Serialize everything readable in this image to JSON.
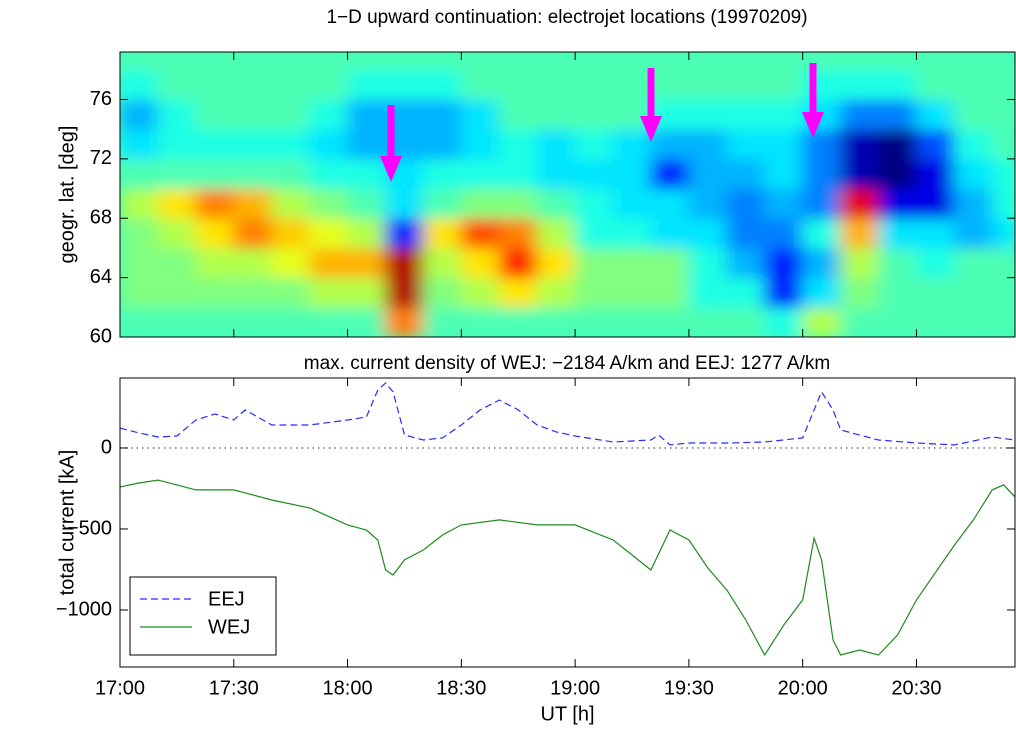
{
  "chart_data": [
    {
      "type": "heatmap",
      "title": "1−D upward continuation: electrojet locations (19970209)",
      "ylabel": "geogr. lat. [deg]",
      "colormap": "jet",
      "zlim": [
        -1,
        1
      ],
      "xlim": [
        17,
        20.933
      ],
      "xticks": [
        17,
        17.5,
        18,
        18.5,
        19,
        19.5,
        20,
        20.5
      ],
      "ylim": [
        60,
        79.2
      ],
      "yticks": [
        60,
        64,
        68,
        72,
        76
      ],
      "x_edges": [
        17,
        17.167,
        17.333,
        17.5,
        17.667,
        17.833,
        18,
        18.167,
        18.333,
        18.5,
        18.667,
        18.833,
        19,
        19.167,
        19.333,
        19.5,
        19.667,
        19.833,
        20,
        20.167,
        20.333,
        20.5,
        20.667,
        20.833,
        20.933
      ],
      "y_edges": [
        60,
        62,
        64,
        66,
        68,
        70,
        72,
        74,
        76,
        78,
        79.2
      ],
      "z": [
        [
          -0.1,
          -0.1,
          -0.1,
          -0.1,
          -0.1,
          -0.1,
          -0.1,
          0.5,
          -0.1,
          -0.1,
          -0.1,
          -0.1,
          -0.1,
          -0.1,
          -0.1,
          -0.1,
          -0.1,
          -0.2,
          0.1,
          -0.1,
          -0.1,
          -0.1,
          -0.1,
          -0.1
        ],
        [
          0,
          0,
          0,
          0,
          0,
          0.1,
          0.1,
          0.9,
          0,
          0.1,
          0.3,
          0.1,
          0,
          0,
          0,
          -0.2,
          -0.2,
          -0.7,
          -0.3,
          0,
          -0.1,
          -0.1,
          -0.1,
          -0.1
        ],
        [
          0,
          0,
          0.1,
          0.1,
          0.2,
          0.4,
          0.4,
          0.9,
          0.1,
          0.3,
          0.7,
          0.3,
          0,
          0,
          0,
          -0.2,
          -0.4,
          -0.7,
          -0.4,
          0.1,
          -0.1,
          -0.2,
          -0.1,
          -0.1
        ],
        [
          0,
          0.1,
          0.3,
          0.5,
          0.35,
          0.2,
          0.1,
          -0.7,
          0.3,
          0.6,
          0.5,
          0.1,
          -0.2,
          -0.2,
          -0.3,
          -0.3,
          -0.5,
          -0.5,
          -0.2,
          0.4,
          -0.3,
          -0.3,
          -0.4,
          -0.3
        ],
        [
          0.1,
          0.3,
          0.5,
          0.4,
          0.1,
          0,
          -0.1,
          -0.3,
          -0.1,
          0,
          0,
          -0.1,
          -0.2,
          -0.3,
          -0.3,
          -0.4,
          -0.5,
          -0.4,
          -0.5,
          0.8,
          -0.8,
          -0.8,
          -0.4,
          -0.2
        ],
        [
          -0.1,
          -0.1,
          -0.1,
          -0.1,
          -0.1,
          -0.2,
          -0.2,
          -0.3,
          -0.2,
          -0.2,
          -0.2,
          -0.3,
          -0.3,
          -0.3,
          -0.7,
          -0.4,
          -0.4,
          -0.3,
          -0.5,
          -0.9,
          -1,
          -0.8,
          -0.3,
          -0.2
        ],
        [
          -0.3,
          -0.2,
          -0.2,
          -0.2,
          -0.2,
          -0.3,
          -0.4,
          -0.4,
          -0.4,
          -0.3,
          -0.2,
          -0.3,
          -0.2,
          -0.3,
          -0.4,
          -0.4,
          -0.3,
          -0.3,
          -0.5,
          -0.9,
          -1,
          -0.6,
          -0.2,
          -0.1
        ],
        [
          -0.4,
          -0.2,
          -0.1,
          -0.1,
          -0.1,
          -0.2,
          -0.4,
          -0.4,
          -0.4,
          -0.3,
          -0.1,
          -0.1,
          -0.1,
          -0.1,
          -0.2,
          -0.2,
          -0.2,
          -0.2,
          -0.3,
          -0.5,
          -0.5,
          -0.3,
          -0.1,
          -0.1
        ],
        [
          -0.2,
          -0.1,
          -0.1,
          -0.1,
          -0.1,
          -0.1,
          -0.2,
          -0.2,
          -0.2,
          -0.1,
          -0.1,
          -0.1,
          -0.1,
          -0.1,
          -0.1,
          -0.1,
          -0.1,
          -0.1,
          -0.2,
          -0.2,
          -0.2,
          -0.1,
          -0.1,
          -0.1
        ],
        [
          -0.1,
          -0.1,
          -0.1,
          -0.1,
          -0.1,
          -0.1,
          -0.1,
          -0.1,
          -0.1,
          -0.1,
          -0.1,
          -0.1,
          -0.1,
          -0.1,
          -0.1,
          -0.1,
          -0.1,
          -0.1,
          -0.1,
          -0.1,
          -0.1,
          -0.1,
          -0.1,
          -0.1
        ]
      ]
    },
    {
      "type": "line",
      "title": "max. current density of WEJ: −2184 A/km and EEJ: 1277 A/km",
      "xlabel": "UT [h]",
      "ylabel": "total current [kA]",
      "xlim": [
        17,
        20.933
      ],
      "xticks": [
        {
          "value": 17,
          "label": "17:00"
        },
        {
          "value": 17.5,
          "label": "17:30"
        },
        {
          "value": 18,
          "label": "18:00"
        },
        {
          "value": 18.5,
          "label": "18:30"
        },
        {
          "value": 19,
          "label": "19:00"
        },
        {
          "value": 19.5,
          "label": "19:30"
        },
        {
          "value": 20,
          "label": "20:00"
        },
        {
          "value": 20.5,
          "label": "20:30"
        }
      ],
      "ylim": [
        -1352,
        432
      ],
      "yticks": [
        {
          "value": -1000,
          "label": "−1000"
        },
        {
          "value": -500,
          "label": "−500"
        },
        0
      ],
      "hlines": [
        0
      ],
      "legend": "lower left",
      "series": [
        {
          "name": "EEJ",
          "color": "#2a2aff",
          "dash": true,
          "x": [
            17,
            17.083,
            17.167,
            17.25,
            17.333,
            17.417,
            17.5,
            17.55,
            17.667,
            17.833,
            18,
            18.083,
            18.133,
            18.167,
            18.2,
            18.25,
            18.333,
            18.417,
            18.5,
            18.583,
            18.667,
            18.75,
            18.833,
            18.917,
            19,
            19.167,
            19.333,
            19.367,
            19.417,
            19.5,
            19.667,
            19.833,
            20,
            20.05,
            20.083,
            20.133,
            20.167,
            20.333,
            20.5,
            20.667,
            20.833,
            20.933
          ],
          "values": [
            123,
            93,
            68,
            74,
            173,
            210,
            173,
            235,
            142,
            142,
            173,
            191,
            358,
            401,
            346,
            80,
            49,
            62,
            142,
            235,
            296,
            235,
            142,
            99,
            74,
            37,
            49,
            80,
            19,
            31,
            31,
            37,
            62,
            235,
            346,
            235,
            111,
            49,
            31,
            19,
            68,
            49
          ]
        },
        {
          "name": "WEJ",
          "color": "#1e8c1e",
          "dash": false,
          "x": [
            17,
            17.083,
            17.167,
            17.25,
            17.333,
            17.5,
            17.667,
            17.833,
            18,
            18.083,
            18.133,
            18.167,
            18.2,
            18.25,
            18.333,
            18.417,
            18.5,
            18.667,
            18.833,
            19,
            19.167,
            19.25,
            19.333,
            19.417,
            19.5,
            19.583,
            19.667,
            19.75,
            19.833,
            19.917,
            20,
            20.05,
            20.083,
            20.133,
            20.167,
            20.25,
            20.333,
            20.417,
            20.5,
            20.667,
            20.75,
            20.833,
            20.883,
            20.933
          ],
          "values": [
            -241,
            -216,
            -198,
            -228,
            -259,
            -259,
            -321,
            -370,
            -475,
            -506,
            -568,
            -753,
            -784,
            -691,
            -630,
            -537,
            -475,
            -444,
            -475,
            -475,
            -568,
            -660,
            -753,
            -506,
            -568,
            -741,
            -877,
            -1062,
            -1278,
            -1093,
            -938,
            -556,
            -691,
            -1185,
            -1278,
            -1247,
            -1278,
            -1154,
            -938,
            -599,
            -444,
            -259,
            -228,
            -302
          ]
        }
      ]
    }
  ]
}
